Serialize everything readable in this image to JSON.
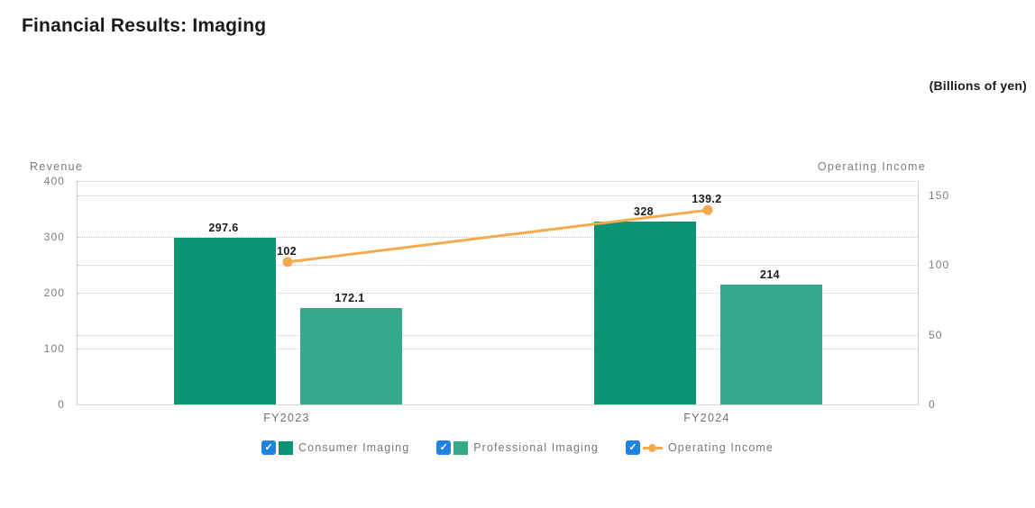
{
  "title": "Financial Results: Imaging",
  "units_note": "(Billions of yen)",
  "chart_data": {
    "type": "bar+line combo",
    "categories": [
      "FY2023",
      "FY2024"
    ],
    "series": [
      {
        "name": "Consumer Imaging",
        "type": "bar",
        "axis": "left",
        "color": "#0b9473",
        "values": [
          297.6,
          328
        ]
      },
      {
        "name": "Professional Imaging",
        "type": "bar",
        "axis": "left",
        "color": "#35a98a",
        "values": [
          172.1,
          214
        ]
      },
      {
        "name": "Operating Income",
        "type": "line",
        "axis": "right",
        "color": "#f5ab4d",
        "values": [
          102,
          139.2
        ]
      }
    ],
    "left_axis": {
      "title": "Revenue",
      "min": 0,
      "max": 400,
      "ticks": [
        0,
        100,
        200,
        300,
        400
      ]
    },
    "right_axis": {
      "title": "Operating Income",
      "min": 0,
      "max": 160,
      "ticks": [
        0,
        50,
        100,
        150
      ]
    },
    "grid": "dotted horizontal lines for both axes",
    "legend_position": "bottom-center",
    "checkbox_color": "#1e84e0",
    "checkbox_icon": "✓",
    "legend": [
      {
        "label": "Consumer Imaging",
        "checked": true,
        "marker": "square",
        "color": "#0b9473"
      },
      {
        "label": "Professional Imaging",
        "checked": true,
        "marker": "square",
        "color": "#35a98a"
      },
      {
        "label": "Operating Income",
        "checked": true,
        "marker": "line-dot",
        "color": "#f5ab4d"
      }
    ]
  }
}
